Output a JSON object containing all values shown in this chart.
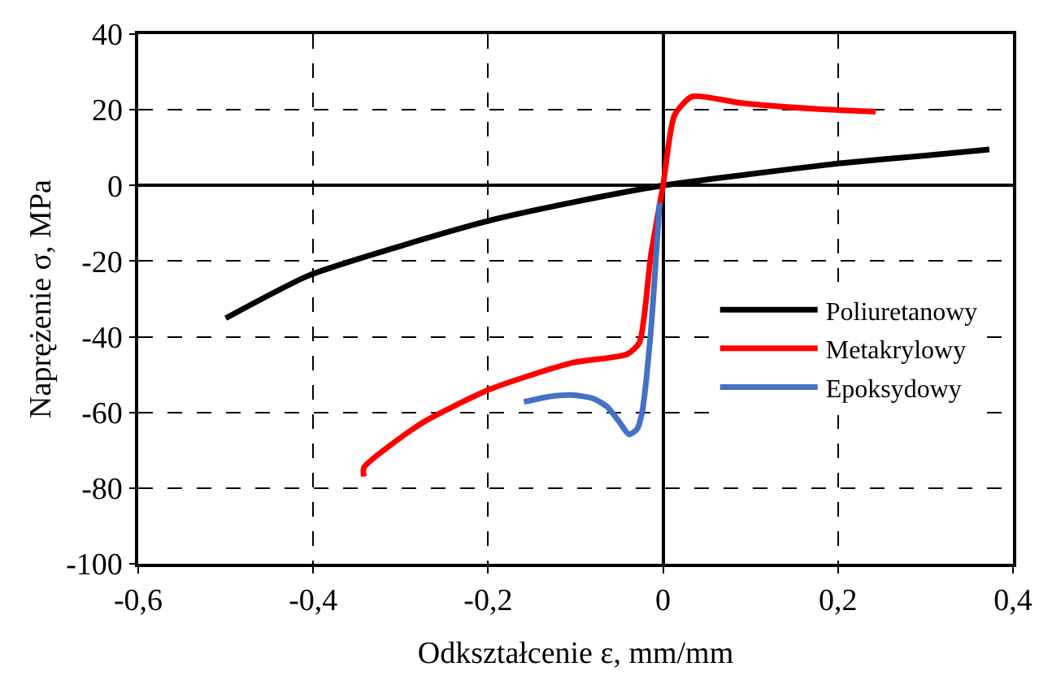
{
  "chart_data": {
    "type": "line",
    "xlabel": "Odkształcenie ε, mm/mm",
    "ylabel": "Naprężenie σ, MPa",
    "xlim": [
      -0.6,
      0.4
    ],
    "xticks": [
      {
        "value": -0.6,
        "label": "-0,6"
      },
      {
        "value": -0.4,
        "label": "-0,4"
      },
      {
        "value": -0.2,
        "label": "-0,2"
      },
      0,
      {
        "value": 0.2,
        "label": "0,2"
      },
      {
        "value": 0.4,
        "label": "0,4"
      }
    ],
    "ylim": [
      -100,
      40
    ],
    "yticks": [
      -100,
      -80,
      -60,
      -40,
      -20,
      0,
      20,
      40
    ],
    "grid": true,
    "legend": "right",
    "line_style": "solid",
    "marker": "none",
    "series": [
      {
        "name": "Poliuretanowy",
        "color": "#000000",
        "x": [
          -0.5,
          -0.405,
          -0.3,
          -0.197,
          -0.1,
          0,
          0.1,
          0.2,
          0.3,
          0.373
        ],
        "values": [
          -35.1,
          -23.8,
          -16,
          -9.2,
          -4.3,
          0,
          3,
          5.8,
          7.9,
          9.5
        ]
      },
      {
        "name": "Metakrylowy",
        "color": "#ff0000",
        "x": [
          -0.342,
          -0.342,
          -0.277,
          -0.197,
          -0.104,
          -0.041,
          -0.027,
          -0.014,
          0,
          0.013,
          0.033,
          0.089,
          0.17,
          0.243
        ],
        "values": [
          -76.9,
          -74.6,
          -63,
          -53.8,
          -46.9,
          -44.6,
          -41.5,
          -18.5,
          0,
          18.5,
          23.5,
          21.8,
          20.3,
          19.5
        ]
      },
      {
        "name": "Epoksydowy",
        "color": "#4472c4",
        "x": [
          -0.159,
          -0.13,
          -0.104,
          -0.08,
          -0.064,
          -0.05,
          -0.039,
          -0.03,
          -0.024,
          -0.014,
          -0.004
        ],
        "values": [
          -57.2,
          -55.8,
          -55.4,
          -56.3,
          -58.5,
          -62.5,
          -65.8,
          -64.5,
          -60,
          -38.5,
          -4.6
        ]
      }
    ]
  }
}
